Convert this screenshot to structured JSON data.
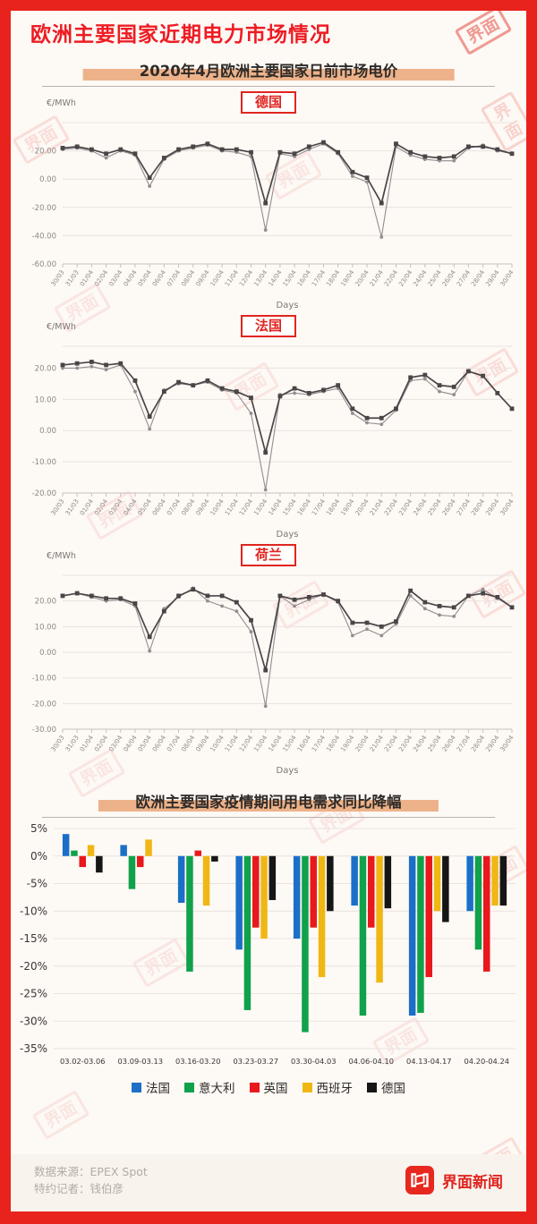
{
  "header": {
    "title": "欧洲主要国家近期电力市场情况"
  },
  "section_price": {
    "title": "2020年4月欧洲主要国家日前市场电价"
  },
  "section_demand": {
    "title": "欧洲主要国家疫情期间用电需求同比降幅"
  },
  "watermark": {
    "text": "界面"
  },
  "footer": {
    "source_label": "数据来源：",
    "source_value": "EPEX Spot",
    "reporter_label": "特约记者：",
    "reporter_value": "钱伯彦",
    "brand": "界面新闻"
  },
  "colors": {
    "frame_red": "#e8231d",
    "title_red": "#ee1c23",
    "highlight_peach": "#edb289",
    "line_dark": "#4a4547",
    "line_light": "#948d90"
  },
  "chart_data": [
    {
      "type": "line",
      "chart_label": "德国",
      "ylabel": "€/MWh",
      "xlabel": "Days",
      "ylim": [
        -60,
        40
      ],
      "yticks": [
        20,
        0,
        -20,
        -40,
        -60
      ],
      "x": [
        "30/03",
        "31/03",
        "01/04",
        "02/04",
        "03/04",
        "04/04",
        "05/04",
        "06/04",
        "07/04",
        "08/04",
        "09/04",
        "10/04",
        "11/04",
        "12/04",
        "13/04",
        "14/04",
        "15/04",
        "16/04",
        "17/04",
        "18/04",
        "19/04",
        "20/04",
        "21/04",
        "22/04",
        "23/04",
        "24/04",
        "25/04",
        "26/04",
        "27/04",
        "28/04",
        "29/04",
        "30/04"
      ],
      "series": [
        {
          "name": "dark-series",
          "marker": "square",
          "color": "#4a4547",
          "values": [
            22,
            23,
            21,
            18,
            21,
            18,
            1,
            15,
            21,
            23,
            25,
            21,
            21,
            19,
            -17,
            19,
            18,
            23,
            26,
            19,
            5,
            1,
            -17,
            25,
            19,
            16,
            15,
            16,
            23,
            23,
            21,
            18
          ]
        },
        {
          "name": "light-series",
          "marker": "dot",
          "color": "#948d90",
          "values": [
            21,
            22,
            20,
            15,
            20,
            17,
            -5,
            14,
            20,
            22,
            24,
            20,
            19,
            16,
            -36,
            18,
            16,
            21,
            25,
            18,
            2,
            -2,
            -41,
            23,
            17,
            14,
            13,
            13,
            22,
            24,
            20,
            18
          ]
        }
      ]
    },
    {
      "type": "line",
      "chart_label": "法国",
      "ylabel": "€/MWh",
      "xlabel": "Days",
      "ylim": [
        -20,
        27
      ],
      "yticks": [
        20,
        10,
        0,
        -10,
        -20
      ],
      "x": [
        "30/03",
        "31/03",
        "01/04",
        "02/04",
        "03/04",
        "04/04",
        "05/04",
        "06/04",
        "07/04",
        "08/04",
        "09/04",
        "10/04",
        "11/04",
        "12/04",
        "13/04",
        "14/04",
        "15/04",
        "16/04",
        "17/04",
        "18/04",
        "19/04",
        "20/04",
        "21/04",
        "22/04",
        "23/04",
        "24/04",
        "25/04",
        "26/04",
        "27/04",
        "28/04",
        "29/04",
        "30/04"
      ],
      "series": [
        {
          "name": "dark-series",
          "marker": "square",
          "color": "#4a4547",
          "values": [
            21,
            21.5,
            22,
            21,
            21.5,
            16,
            4.5,
            12.5,
            15.5,
            14.5,
            16,
            13.5,
            12.5,
            10.5,
            -7,
            11,
            13.5,
            12,
            13,
            14.5,
            7,
            4,
            4,
            7,
            17,
            17.8,
            14.5,
            14,
            19,
            17.5,
            12,
            7
          ]
        },
        {
          "name": "light-series",
          "marker": "dot",
          "color": "#948d90",
          "values": [
            20,
            20,
            20.5,
            19.5,
            21,
            12.5,
            0.5,
            13,
            15,
            14.5,
            15.5,
            13,
            12,
            5.5,
            -19,
            11.5,
            12,
            11.5,
            12.5,
            13.5,
            5.5,
            2.5,
            2,
            6.5,
            16,
            16.5,
            12.5,
            11.5,
            19,
            17.5,
            12,
            7
          ]
        }
      ]
    },
    {
      "type": "line",
      "chart_label": "荷兰",
      "ylabel": "€/MWh",
      "xlabel": "Days",
      "ylim": [
        -30,
        30
      ],
      "yticks": [
        20,
        10,
        0,
        -10,
        -20,
        -30
      ],
      "x": [
        "30/03",
        "31/03",
        "01/04",
        "02/04",
        "03/04",
        "04/04",
        "05/04",
        "06/04",
        "07/04",
        "08/04",
        "09/04",
        "10/04",
        "11/04",
        "12/04",
        "13/04",
        "14/04",
        "15/04",
        "16/04",
        "17/04",
        "18/04",
        "19/04",
        "20/04",
        "21/04",
        "22/04",
        "23/04",
        "24/04",
        "25/04",
        "26/04",
        "27/04",
        "28/04",
        "29/04",
        "30/04"
      ],
      "series": [
        {
          "name": "dark-series",
          "marker": "square",
          "color": "#4a4547",
          "values": [
            22,
            23,
            22,
            21,
            21,
            19,
            6,
            16,
            22,
            24.5,
            22,
            22,
            19.5,
            12.5,
            -7,
            22,
            20.5,
            21.5,
            22.5,
            20,
            11.5,
            11.5,
            10,
            12,
            24,
            19.5,
            18,
            17.5,
            22,
            23,
            21.5,
            17.5
          ]
        },
        {
          "name": "light-series",
          "marker": "dot",
          "color": "#948d90",
          "values": [
            22,
            23,
            21.5,
            20,
            20.5,
            18,
            0.5,
            17,
            21.5,
            25,
            20,
            18,
            16,
            8,
            -21,
            22,
            18,
            20.5,
            22.5,
            19.5,
            6.5,
            9,
            6.5,
            11,
            22,
            17,
            14.5,
            14,
            22,
            24.5,
            21,
            17.5
          ]
        }
      ]
    },
    {
      "type": "bar",
      "title": "欧洲主要国家疫情期间用电需求同比降幅",
      "ylim": [
        -35,
        5
      ],
      "yticks": [
        5,
        0,
        -5,
        -10,
        -15,
        -20,
        -25,
        -30,
        -35
      ],
      "categories": [
        "03.02-03.06",
        "03.09-03.13",
        "03.16-03.20",
        "03.23-03.27",
        "03.30-04.03",
        "04.06-04.10",
        "04.13-04.17",
        "04.20-04.24"
      ],
      "series": [
        {
          "name": "法国",
          "color": "#1b6fc7",
          "values": [
            4,
            2,
            -8.5,
            -17,
            -15,
            -9,
            -29,
            -10
          ]
        },
        {
          "name": "意大利",
          "color": "#10a14b",
          "values": [
            1,
            -6,
            -21,
            -28,
            -32,
            -29,
            -28.5,
            -17
          ]
        },
        {
          "name": "英国",
          "color": "#e8181d",
          "values": [
            -2,
            -2,
            1,
            -13,
            -13,
            -13,
            -22,
            -21
          ]
        },
        {
          "name": "西班牙",
          "color": "#f0b714",
          "values": [
            2,
            3,
            -9,
            -15,
            -22,
            -23,
            -10,
            -9
          ]
        },
        {
          "name": "德国",
          "color": "#161616",
          "values": [
            -3,
            0,
            -1,
            -8,
            -10,
            -9.5,
            -12,
            -9
          ]
        }
      ],
      "legend_position": "bottom"
    }
  ]
}
